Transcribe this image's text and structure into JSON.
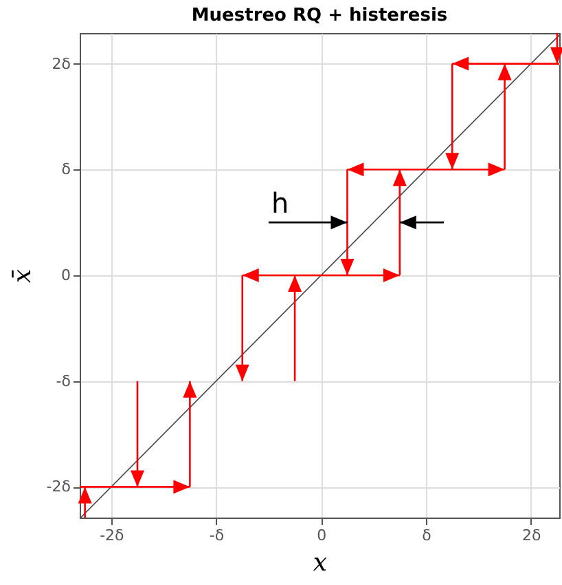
{
  "chart_data": {
    "type": "line",
    "title": "Muestreo RQ + histeresis",
    "xlabel": "x",
    "ylabel": "x̄",
    "xlim": [
      -2.3,
      2.27
    ],
    "ylim": [
      -2.29,
      2.29
    ],
    "xticks": [
      {
        "value": -2,
        "label": "-2δ"
      },
      {
        "value": -1,
        "label": "-δ"
      },
      0,
      {
        "value": 1,
        "label": "δ"
      },
      {
        "value": 2,
        "label": "2δ"
      }
    ],
    "yticks": [
      {
        "value": -2,
        "label": "-2δ"
      },
      {
        "value": -1,
        "label": "-δ"
      },
      0,
      {
        "value": 1,
        "label": "δ"
      },
      {
        "value": 2,
        "label": "2δ"
      }
    ],
    "grid": true,
    "series": [
      {
        "color": "#444444",
        "x": [
          -2.29,
          2.27
        ],
        "values": [
          -2.29,
          2.27
        ]
      },
      {
        "color": "#ff0000",
        "x": [
          -2.25,
          -2.25,
          null,
          -2.3,
          -1.25,
          null,
          -1.25,
          -1.25,
          null,
          -1.75,
          -1.75,
          null,
          -0.75,
          -0.75,
          null,
          -0.25,
          -0.25,
          null,
          -0.75,
          0.75,
          null,
          0.75,
          -0.75,
          null,
          0.75,
          0.75,
          null,
          0.25,
          0.25,
          null,
          0.25,
          1.75,
          null,
          1.75,
          0.25,
          null,
          1.75,
          1.75,
          null,
          1.25,
          1.25,
          null,
          2.27,
          1.25,
          null,
          2.25,
          2.25
        ],
        "values": [
          -2.29,
          -2,
          null,
          -2,
          -2,
          null,
          -2,
          -1,
          null,
          -1,
          -2,
          null,
          0,
          -1,
          null,
          -1,
          0,
          null,
          0,
          0,
          null,
          0,
          0,
          null,
          0,
          1,
          null,
          1,
          0,
          null,
          1,
          1,
          null,
          1,
          1,
          null,
          1,
          2,
          null,
          2,
          1,
          null,
          2,
          2,
          null,
          2.29,
          2
        ]
      },
      {
        "name": "h",
        "color": "#000000",
        "x": [
          -0.5,
          0.25,
          null,
          1.17,
          0.75
        ],
        "values": [
          0.5,
          0.5,
          null,
          0.5,
          0.5
        ]
      }
    ]
  }
}
